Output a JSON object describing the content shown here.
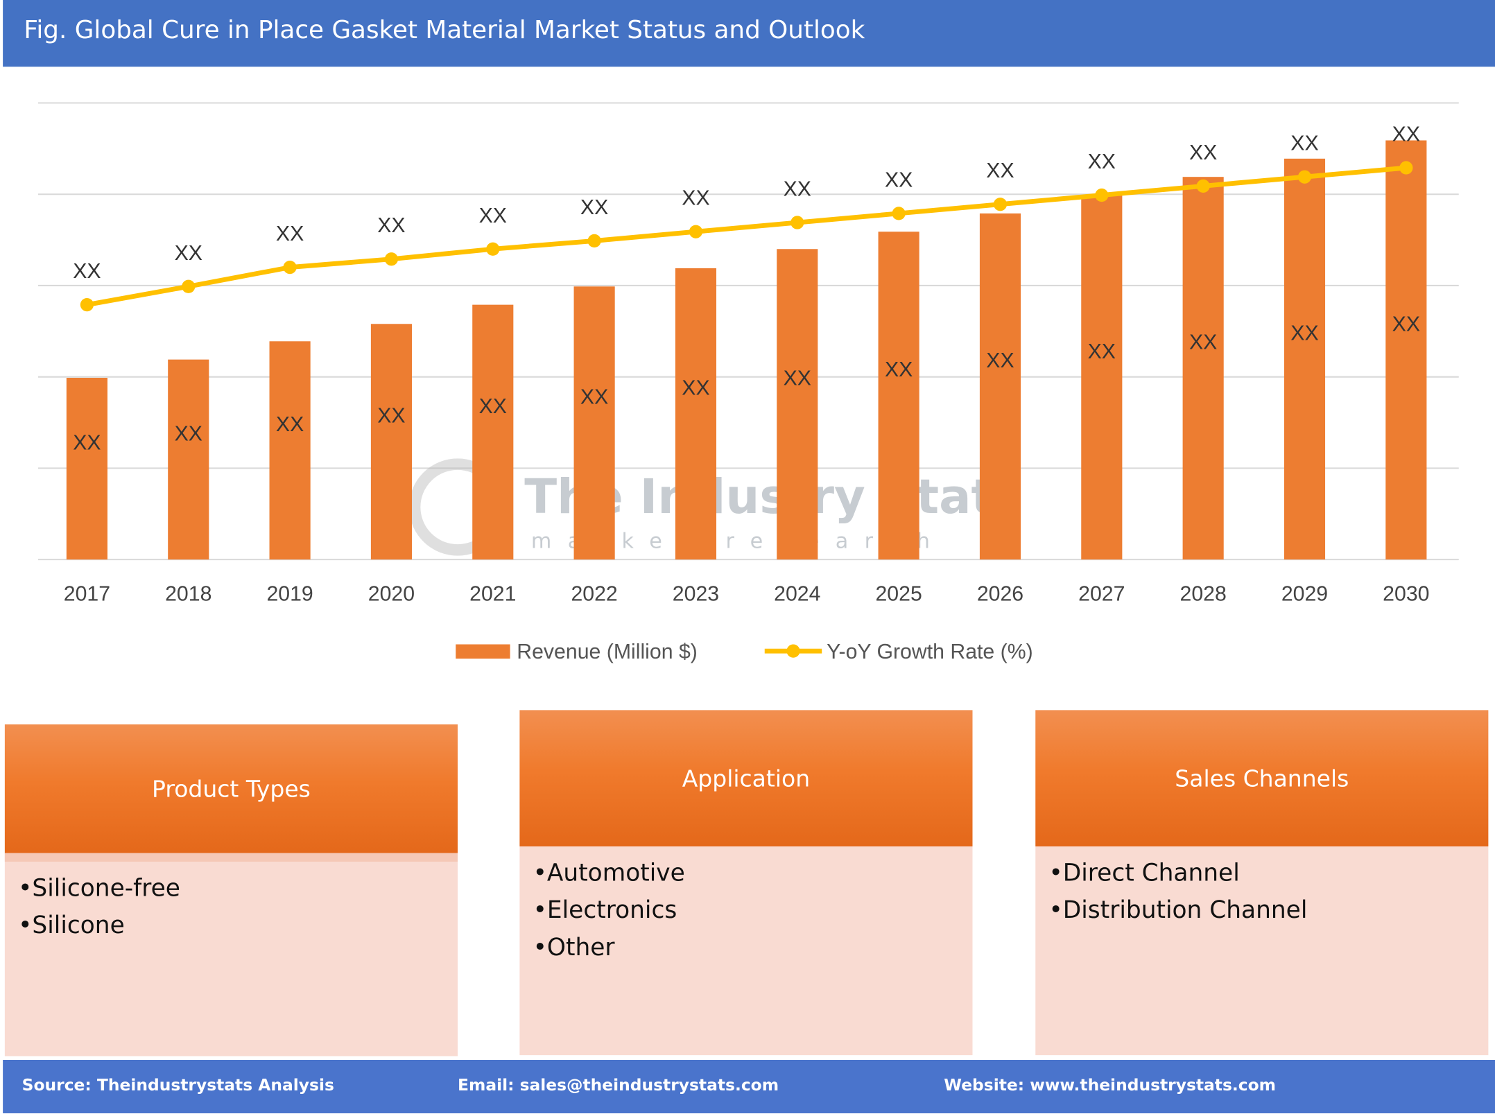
{
  "title": "Fig. Global Cure in Place Gasket Material Market Status and Outlook",
  "chart_data": {
    "type": "bar+line",
    "categories": [
      "2017",
      "2018",
      "2019",
      "2020",
      "2021",
      "2022",
      "2023",
      "2024",
      "2025",
      "2026",
      "2027",
      "2028",
      "2029",
      "2030"
    ],
    "series": [
      {
        "name": "Revenue (Million $)",
        "type": "bar",
        "color": "#ed7d31",
        "values": [
          1.99,
          2.19,
          2.39,
          2.58,
          2.79,
          2.99,
          3.19,
          3.4,
          3.59,
          3.79,
          3.99,
          4.19,
          4.39,
          4.59
        ],
        "labels": [
          "XX",
          "XX",
          "XX",
          "XX",
          "XX",
          "XX",
          "XX",
          "XX",
          "XX",
          "XX",
          "XX",
          "XX",
          "XX",
          "XX"
        ]
      },
      {
        "name": "Y-oY Growth Rate (%)",
        "type": "line",
        "color": "#ffc000",
        "values": [
          2.79,
          2.99,
          3.2,
          3.29,
          3.4,
          3.49,
          3.59,
          3.69,
          3.79,
          3.89,
          3.99,
          4.09,
          4.19,
          4.29
        ],
        "labels": [
          "XX",
          "XX",
          "XX",
          "XX",
          "XX",
          "XX",
          "XX",
          "XX",
          "XX",
          "XX",
          "XX",
          "XX",
          "XX",
          "XX"
        ]
      }
    ],
    "ylim": [
      0,
      5
    ],
    "grid": true,
    "legend": "bottom",
    "watermark": {
      "title": "The Industry Stats",
      "subtitle": "market research"
    }
  },
  "segments": [
    {
      "title": "Product Types",
      "items": [
        "Silicone-free",
        "Silicone"
      ]
    },
    {
      "title": "Application",
      "items": [
        "Automotive",
        "Electronics",
        "Other"
      ]
    },
    {
      "title": "Sales Channels",
      "items": [
        "Direct Channel",
        "Distribution Channel"
      ]
    }
  ],
  "footer": {
    "source": "Source: Theindustrystats Analysis",
    "email": "Email: sales@theindustrystats.com",
    "website": "Website: www.theindustrystats.com"
  }
}
